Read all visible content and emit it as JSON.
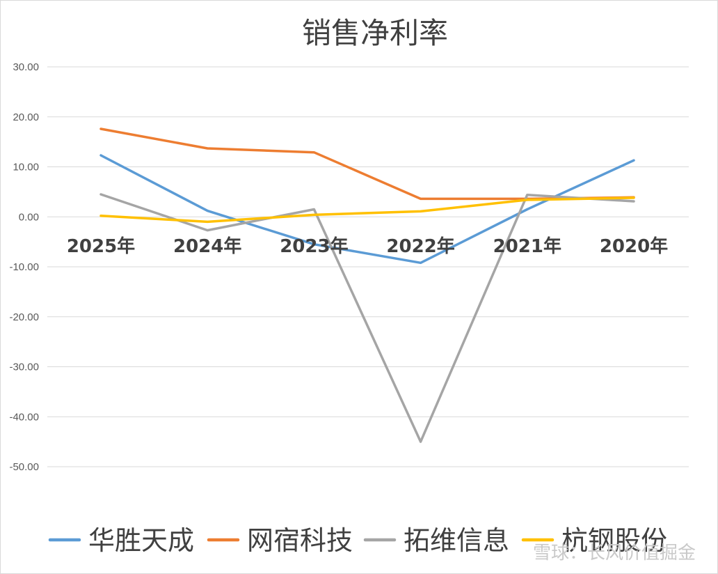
{
  "chart_data": {
    "type": "line",
    "title": "销售净利率",
    "categories": [
      "2025年",
      "2024年",
      "2023年",
      "2022年",
      "2021年",
      "2020年"
    ],
    "yticks": [
      "30.00",
      "20.00",
      "10.00",
      "0.00",
      "-10.00",
      "-20.00",
      "-30.00",
      "-40.00",
      "-50.00"
    ],
    "ylim": [
      -50,
      30
    ],
    "grid": true,
    "legend_position": "bottom",
    "series": [
      {
        "name": "华胜天成",
        "color": "#5B9BD5",
        "values": [
          12.3,
          1.2,
          -5.5,
          -9.2,
          1.5,
          11.3
        ]
      },
      {
        "name": "网宿科技",
        "color": "#ED7D31",
        "values": [
          17.6,
          13.7,
          12.9,
          3.6,
          3.6,
          3.9
        ]
      },
      {
        "name": "拓维信息",
        "color": "#A5A5A5",
        "values": [
          4.5,
          -2.7,
          1.5,
          -45.0,
          4.4,
          3.1
        ]
      },
      {
        "name": "杭钢股份",
        "color": "#FFC000",
        "values": [
          0.2,
          -1.0,
          0.4,
          1.1,
          3.4,
          3.8
        ]
      }
    ]
  },
  "watermark": "雪球：长风价值掘金"
}
